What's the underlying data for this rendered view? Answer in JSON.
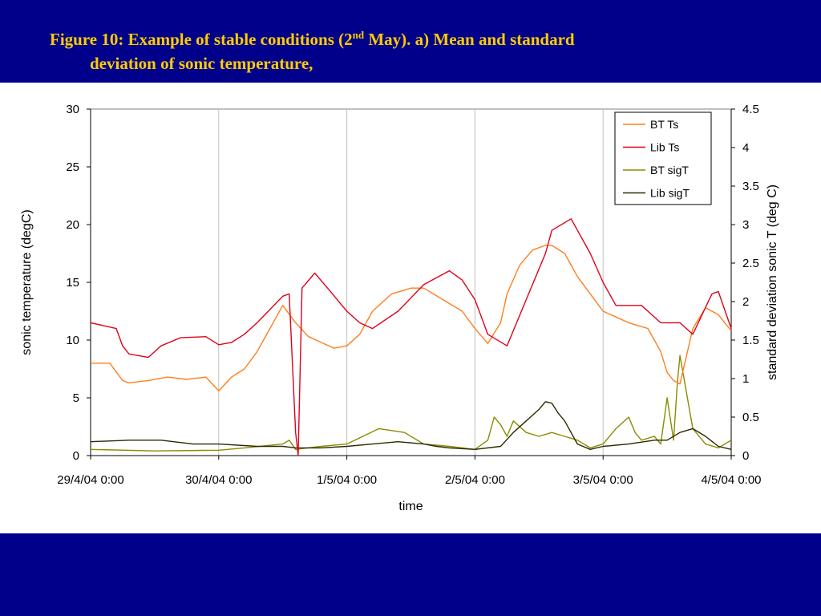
{
  "slide": {
    "title_pre": "Figure 10: Example of stable conditions (2",
    "title_sup": "nd",
    "title_post": " May). a) Mean and standard",
    "title_line2": "deviation of sonic temperature,"
  },
  "colors": {
    "band": "#00008b",
    "title": "#ffcc00",
    "bt_ts": "#ff7f1e",
    "lib_ts": "#e0001a",
    "bt_sigt": "#8b8b00",
    "lib_sigt": "#2b2b00"
  },
  "chart_data": {
    "type": "line",
    "xlabel": "time",
    "ylabel_left": "sonic temperature (degC)",
    "ylabel_right": "standard deviation sonic T (deg C)",
    "xlim": [
      0,
      5
    ],
    "ylim_left": [
      0,
      30
    ],
    "ylim_right": [
      0,
      4.5
    ],
    "x_ticks": [
      0,
      1,
      2,
      3,
      4,
      5
    ],
    "x_tick_labels": [
      "29/4/04 0:00",
      "30/4/04 0:00",
      "1/5/04 0:00",
      "2/5/04 0:00",
      "3/5/04 0:00",
      "4/5/04 0:00"
    ],
    "y_ticks_left": [
      0,
      5,
      10,
      15,
      20,
      25,
      30
    ],
    "y_ticks_right": [
      0,
      0.5,
      1,
      1.5,
      2,
      2.5,
      3,
      3.5,
      4,
      4.5
    ],
    "grid": "vertical",
    "legend_position": "top-right",
    "x_units": "days since 29/4/04 0:00",
    "series": [
      {
        "name": "BT Ts",
        "axis": "left",
        "color": "#ff7f1e",
        "x": [
          0,
          0.15,
          0.25,
          0.3,
          0.45,
          0.6,
          0.75,
          0.9,
          1.0,
          1.1,
          1.2,
          1.3,
          1.4,
          1.5,
          1.6,
          1.7,
          1.8,
          1.9,
          2.0,
          2.1,
          2.2,
          2.35,
          2.5,
          2.6,
          2.75,
          2.9,
          3.0,
          3.1,
          3.2,
          3.25,
          3.35,
          3.45,
          3.55,
          3.6,
          3.7,
          3.8,
          3.9,
          4.0,
          4.1,
          4.2,
          4.35,
          4.45,
          4.5,
          4.55,
          4.6,
          4.7,
          4.8,
          4.9,
          5.0
        ],
        "y": [
          8.0,
          8.0,
          6.5,
          6.3,
          6.5,
          6.8,
          6.6,
          6.8,
          5.6,
          6.8,
          7.5,
          9.0,
          11.0,
          13.0,
          11.5,
          10.3,
          9.8,
          9.3,
          9.5,
          10.5,
          12.5,
          14.0,
          14.5,
          14.5,
          13.5,
          12.5,
          11.0,
          9.7,
          11.5,
          14.0,
          16.5,
          17.8,
          18.2,
          18.2,
          17.5,
          15.5,
          14.0,
          12.5,
          12.0,
          11.5,
          11.0,
          9.0,
          7.2,
          6.5,
          6.2,
          11.0,
          12.8,
          12.2,
          10.8
        ]
      },
      {
        "name": "Lib Ts",
        "axis": "left",
        "color": "#e0001a",
        "x": [
          0,
          0.2,
          0.25,
          0.3,
          0.45,
          0.55,
          0.7,
          0.9,
          1.0,
          1.1,
          1.2,
          1.3,
          1.5,
          1.55,
          1.6,
          1.62,
          1.65,
          1.75,
          1.85,
          2.0,
          2.1,
          2.2,
          2.4,
          2.6,
          2.8,
          2.9,
          3.0,
          3.1,
          3.25,
          3.4,
          3.55,
          3.6,
          3.75,
          3.9,
          4.0,
          4.1,
          4.3,
          4.45,
          4.6,
          4.7,
          4.85,
          4.9,
          5.0
        ],
        "y": [
          11.5,
          11.0,
          9.5,
          8.8,
          8.5,
          9.5,
          10.2,
          10.3,
          9.6,
          9.8,
          10.5,
          11.5,
          13.8,
          14.0,
          2.0,
          0.0,
          14.5,
          15.8,
          14.5,
          12.5,
          11.5,
          11.0,
          12.5,
          14.8,
          16.0,
          15.2,
          13.5,
          10.5,
          9.5,
          13.5,
          17.5,
          19.5,
          20.5,
          17.5,
          15.0,
          13.0,
          13.0,
          11.5,
          11.5,
          10.5,
          14.0,
          14.2,
          11.0
        ]
      },
      {
        "name": "BT sigT",
        "axis": "right",
        "color": "#8b8b00",
        "x": [
          0,
          0.5,
          1.0,
          1.2,
          1.5,
          1.55,
          1.6,
          1.8,
          2.0,
          2.25,
          2.45,
          2.6,
          2.8,
          3.0,
          3.1,
          3.15,
          3.2,
          3.25,
          3.3,
          3.4,
          3.5,
          3.6,
          3.7,
          3.8,
          3.9,
          4.0,
          4.1,
          4.2,
          4.25,
          4.3,
          4.4,
          4.45,
          4.5,
          4.55,
          4.58,
          4.6,
          4.7,
          4.8,
          4.9,
          5.0
        ],
        "y": [
          0.08,
          0.06,
          0.07,
          0.1,
          0.15,
          0.2,
          0.08,
          0.12,
          0.15,
          0.35,
          0.3,
          0.15,
          0.12,
          0.08,
          0.2,
          0.5,
          0.4,
          0.25,
          0.45,
          0.3,
          0.25,
          0.3,
          0.25,
          0.2,
          0.1,
          0.15,
          0.35,
          0.5,
          0.3,
          0.2,
          0.25,
          0.15,
          0.75,
          0.2,
          0.95,
          1.3,
          0.35,
          0.15,
          0.1,
          0.2
        ]
      },
      {
        "name": "Lib sigT",
        "axis": "right",
        "color": "#2b2b00",
        "x": [
          0,
          0.3,
          0.55,
          0.8,
          1.0,
          1.3,
          1.5,
          1.6,
          1.8,
          2.0,
          2.2,
          2.4,
          2.6,
          2.7,
          2.8,
          3.0,
          3.2,
          3.3,
          3.4,
          3.5,
          3.55,
          3.6,
          3.65,
          3.7,
          3.8,
          3.9,
          4.0,
          4.2,
          4.4,
          4.5,
          4.6,
          4.7,
          4.8,
          4.9,
          5.0
        ],
        "y": [
          0.18,
          0.2,
          0.2,
          0.15,
          0.15,
          0.12,
          0.12,
          0.1,
          0.1,
          0.12,
          0.15,
          0.18,
          0.15,
          0.12,
          0.1,
          0.08,
          0.12,
          0.3,
          0.45,
          0.6,
          0.7,
          0.68,
          0.55,
          0.45,
          0.15,
          0.08,
          0.12,
          0.15,
          0.2,
          0.2,
          0.3,
          0.35,
          0.25,
          0.12,
          0.08
        ]
      }
    ]
  }
}
